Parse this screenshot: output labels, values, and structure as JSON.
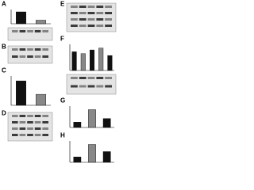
{
  "figure": {
    "panels": [
      {
        "label": "A",
        "type": "bar-blot",
        "values": [
          1.0,
          0.3
        ],
        "ylim": [
          0,
          1.2
        ]
      },
      {
        "label": "B",
        "type": "blot"
      },
      {
        "label": "C",
        "type": "bar",
        "values": [
          1.0,
          0.45
        ],
        "ylim": [
          0,
          1.2
        ]
      },
      {
        "label": "D",
        "type": "blot"
      },
      {
        "label": "E",
        "type": "blot"
      },
      {
        "label": "F",
        "type": "bar-blot",
        "values": [
          1.0,
          0.9,
          1.1,
          1.2,
          0.8
        ],
        "ylim": [
          0,
          1.4
        ]
      },
      {
        "label": "G",
        "type": "bar",
        "values": [
          0.3,
          1.0,
          0.5
        ],
        "ylim": [
          0,
          1.2
        ]
      },
      {
        "label": "H",
        "type": "bar",
        "values": [
          0.3,
          1.0,
          0.6
        ],
        "ylim": [
          0,
          1.2
        ]
      }
    ]
  }
}
